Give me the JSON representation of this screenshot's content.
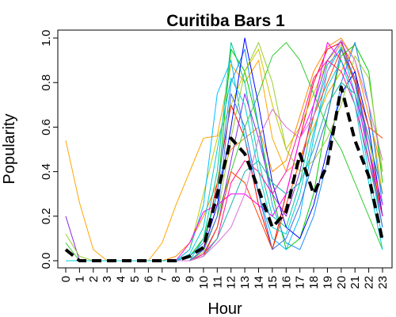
{
  "chart_data": {
    "type": "line",
    "title": "Curitiba Bars 1",
    "xlabel": "Hour",
    "ylabel": "Popularity",
    "x": [
      0,
      1,
      2,
      3,
      4,
      5,
      6,
      7,
      8,
      9,
      10,
      11,
      12,
      13,
      14,
      15,
      16,
      17,
      18,
      19,
      20,
      21,
      22,
      23
    ],
    "xticks": [
      "0",
      "1",
      "2",
      "3",
      "4",
      "5",
      "6",
      "7",
      "8",
      "9",
      "10",
      "11",
      "12",
      "13",
      "14",
      "15",
      "16",
      "17",
      "18",
      "19",
      "20",
      "21",
      "22",
      "23"
    ],
    "yticks": [
      "0.0",
      "0.2",
      "0.4",
      "0.6",
      "0.8",
      "1.0"
    ],
    "ylim": [
      0,
      1
    ],
    "xlim": [
      0,
      23
    ],
    "grid": false,
    "legend": "none",
    "series": [
      {
        "color": "#000000",
        "style": "dashed-thick",
        "values": [
          0.05,
          0.0,
          0.0,
          0.0,
          0.0,
          0.0,
          0.0,
          0.0,
          0.0,
          0.02,
          0.06,
          0.3,
          0.55,
          0.48,
          0.32,
          0.15,
          0.22,
          0.48,
          0.3,
          0.43,
          0.78,
          0.54,
          0.38,
          0.09
        ]
      },
      {
        "color": "#ff0000",
        "values": [
          0,
          0,
          0,
          0,
          0,
          0,
          0,
          0,
          0,
          0,
          0.05,
          0.35,
          0.7,
          0.55,
          0.25,
          0.05,
          0.3,
          0.55,
          0.8,
          0.95,
          0.98,
          0.85,
          0.5,
          0.2
        ]
      },
      {
        "color": "#ff8c00",
        "values": [
          0,
          0,
          0,
          0,
          0,
          0,
          0,
          0,
          0.02,
          0.08,
          0.2,
          0.35,
          0.5,
          0.55,
          0.6,
          0.4,
          0.45,
          0.65,
          0.85,
          0.96,
          1.0,
          0.9,
          0.65,
          0.4
        ]
      },
      {
        "color": "#ffa500",
        "values": [
          0.54,
          0.26,
          0.05,
          0,
          0,
          0,
          0,
          0.08,
          0.25,
          0.4,
          0.55,
          0.56,
          0.88,
          0.8,
          0.9,
          0.55,
          0.4,
          0.45,
          0.6,
          0.75,
          0.85,
          0.98,
          0.7,
          0.3
        ]
      },
      {
        "color": "#c8c800",
        "values": [
          0,
          0,
          0,
          0,
          0,
          0,
          0,
          0,
          0,
          0.05,
          0.3,
          0.55,
          0.7,
          0.85,
          0.95,
          0.7,
          0.5,
          0.6,
          0.75,
          0.9,
          0.97,
          0.8,
          0.55,
          0.2
        ]
      },
      {
        "color": "#00cc00",
        "values": [
          0,
          0,
          0,
          0,
          0,
          0,
          0,
          0,
          0,
          0.02,
          0.1,
          0.3,
          0.95,
          0.85,
          0.6,
          0.3,
          0.05,
          0.1,
          0.3,
          0.65,
          0.92,
          0.97,
          0.85,
          0.35
        ]
      },
      {
        "color": "#32cd32",
        "values": [
          0.08,
          0,
          0,
          0,
          0,
          0,
          0,
          0,
          0,
          0,
          0.05,
          0.2,
          0.4,
          0.6,
          0.75,
          0.92,
          0.98,
          0.9,
          0.75,
          0.6,
          0.5,
          0.35,
          0.2,
          0.05
        ]
      },
      {
        "color": "#00c8a0",
        "values": [
          0,
          0,
          0,
          0,
          0,
          0,
          0,
          0,
          0,
          0,
          0.1,
          0.4,
          0.98,
          0.8,
          0.45,
          0.2,
          0.15,
          0.35,
          0.65,
          0.88,
          0.95,
          0.8,
          0.45,
          0.15
        ]
      },
      {
        "color": "#00bfff",
        "values": [
          0,
          0,
          0,
          0,
          0,
          0,
          0,
          0,
          0,
          0.05,
          0.25,
          0.75,
          0.9,
          0.55,
          0.3,
          0.1,
          0.05,
          0.2,
          0.55,
          0.85,
          0.96,
          0.75,
          0.4,
          0.1
        ]
      },
      {
        "color": "#1e90ff",
        "values": [
          0,
          0,
          0,
          0,
          0,
          0,
          0,
          0,
          0,
          0.02,
          0.08,
          0.3,
          0.8,
          0.95,
          0.6,
          0.25,
          0.08,
          0.05,
          0.2,
          0.45,
          0.8,
          0.98,
          0.7,
          0.25
        ]
      },
      {
        "color": "#0000ff",
        "values": [
          0,
          0,
          0,
          0,
          0,
          0,
          0,
          0,
          0,
          0,
          0.05,
          0.25,
          0.6,
          1.0,
          0.7,
          0.35,
          0.15,
          0.1,
          0.25,
          0.5,
          0.75,
          0.85,
          0.6,
          0.2
        ]
      },
      {
        "color": "#8a2be2",
        "values": [
          0.2,
          0,
          0,
          0,
          0,
          0,
          0,
          0,
          0,
          0,
          0.03,
          0.15,
          0.45,
          0.75,
          0.55,
          0.3,
          0.2,
          0.4,
          0.7,
          0.9,
          0.99,
          0.8,
          0.55,
          0.3
        ]
      },
      {
        "color": "#ff00ff",
        "values": [
          0,
          0,
          0,
          0,
          0,
          0,
          0,
          0,
          0,
          0.08,
          0.22,
          0.25,
          0.3,
          0.3,
          0.25,
          0.2,
          0.3,
          0.55,
          0.7,
          0.98,
          0.9,
          0.75,
          0.5,
          0.25
        ]
      },
      {
        "color": "#ff1493",
        "values": [
          0,
          0,
          0,
          0,
          0,
          0,
          0,
          0,
          0,
          0,
          0.03,
          0.1,
          0.35,
          0.45,
          0.4,
          0.3,
          0.4,
          0.6,
          0.82,
          0.9,
          0.85,
          0.7,
          0.45,
          0.2
        ]
      },
      {
        "color": "#9acd32",
        "values": [
          0.12,
          0.02,
          0,
          0,
          0,
          0,
          0,
          0,
          0,
          0,
          0.04,
          0.2,
          0.55,
          0.85,
          0.98,
          0.8,
          0.5,
          0.4,
          0.45,
          0.55,
          0.7,
          0.92,
          0.82,
          0.4
        ]
      },
      {
        "color": "#ff4500",
        "values": [
          0,
          0,
          0,
          0,
          0,
          0,
          0,
          0,
          0,
          0,
          0.02,
          0.15,
          0.4,
          0.35,
          0.2,
          0.05,
          0.25,
          0.45,
          0.65,
          0.8,
          0.95,
          0.8,
          0.6,
          0.55
        ]
      },
      {
        "color": "#20b2aa",
        "values": [
          0,
          0,
          0,
          0,
          0,
          0,
          0,
          0,
          0,
          0,
          0.02,
          0.1,
          0.25,
          0.4,
          0.45,
          0.35,
          0.3,
          0.35,
          0.5,
          0.7,
          0.8,
          0.75,
          0.55,
          0.3
        ]
      },
      {
        "color": "#4169e1",
        "values": [
          0,
          0,
          0,
          0,
          0,
          0,
          0,
          0,
          0,
          0,
          0.05,
          0.2,
          0.75,
          0.6,
          0.3,
          0.05,
          0.1,
          0.25,
          0.45,
          0.65,
          0.95,
          0.82,
          0.5,
          0.15
        ]
      },
      {
        "color": "#da70d6",
        "values": [
          0,
          0,
          0,
          0,
          0,
          0,
          0,
          0,
          0,
          0,
          0.02,
          0.08,
          0.15,
          0.3,
          0.55,
          0.68,
          0.6,
          0.55,
          0.65,
          0.85,
          0.99,
          0.9,
          0.7,
          0.45
        ]
      },
      {
        "color": "#00ced1",
        "values": [
          0,
          0,
          0,
          0,
          0,
          0,
          0,
          0,
          0,
          0.03,
          0.15,
          0.5,
          0.82,
          0.7,
          0.4,
          0.15,
          0.12,
          0.3,
          0.58,
          0.78,
          0.9,
          0.7,
          0.35,
          0.05
        ]
      }
    ]
  }
}
